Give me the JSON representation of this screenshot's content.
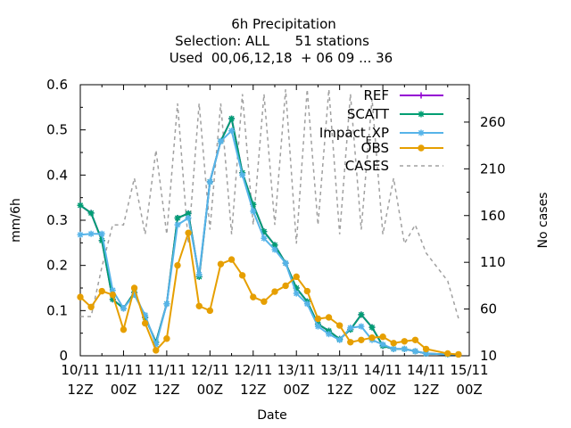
{
  "chart_data": {
    "type": "line",
    "title_lines": [
      "6h Precipitation",
      "Selection: ALL      51 stations",
      "Used  00,06,12,18  + 06 09 ... 36"
    ],
    "xlabel": "Date",
    "ylabel": "mm/6h",
    "y2label": "No cases",
    "xlim": [
      0,
      108
    ],
    "ylim": [
      0,
      0.6
    ],
    "y2lim": [
      10,
      300
    ],
    "x_ticks": [
      {
        "x": 0,
        "l1": "10/11",
        "l2": "12Z"
      },
      {
        "x": 12,
        "l1": "11/11",
        "l2": "00Z"
      },
      {
        "x": 24,
        "l1": "11/11",
        "l2": "12Z"
      },
      {
        "x": 36,
        "l1": "12/11",
        "l2": "00Z"
      },
      {
        "x": 48,
        "l1": "12/11",
        "l2": "12Z"
      },
      {
        "x": 60,
        "l1": "13/11",
        "l2": "00Z"
      },
      {
        "x": 72,
        "l1": "13/11",
        "l2": "12Z"
      },
      {
        "x": 84,
        "l1": "14/11",
        "l2": "00Z"
      },
      {
        "x": 96,
        "l1": "14/11",
        "l2": "12Z"
      },
      {
        "x": 108,
        "l1": "15/11",
        "l2": "00Z"
      }
    ],
    "y_ticks": [
      "0",
      "0.1",
      "0.2",
      "0.3",
      "0.4",
      "0.5",
      "0.6"
    ],
    "y_tick_values": [
      0,
      0.1,
      0.2,
      0.3,
      0.4,
      0.5,
      0.6
    ],
    "y2_ticks": [
      "10",
      "60",
      "110",
      "160",
      "210",
      "260"
    ],
    "y2_tick_values": [
      10,
      60,
      110,
      160,
      210,
      260
    ],
    "legend_position": "top-right",
    "series": [
      {
        "name": "REF",
        "color": "#9400d3",
        "marker": "plus",
        "dashed": false,
        "x": [
          0,
          3,
          6,
          9,
          12,
          15,
          18,
          21,
          24,
          27,
          30,
          33,
          36,
          39,
          42,
          45,
          48,
          51,
          54,
          57,
          60,
          63,
          66,
          69,
          72,
          75,
          78,
          81,
          84,
          87,
          90,
          93,
          96,
          102,
          105
        ],
        "y": [
          0.333,
          0.316,
          0.255,
          0.125,
          0.105,
          0.14,
          0.085,
          0.03,
          0.115,
          0.305,
          0.315,
          0.175,
          0.385,
          0.475,
          0.525,
          0.405,
          0.335,
          0.275,
          0.245,
          0.205,
          0.15,
          0.12,
          0.07,
          0.055,
          0.037,
          0.058,
          0.091,
          0.063,
          0.022,
          0.015,
          0.015,
          0.01,
          0.005,
          0.003,
          0.003
        ]
      },
      {
        "name": "SCATT",
        "color": "#009e73",
        "marker": "star",
        "dashed": false,
        "x": [
          0,
          3,
          6,
          9,
          12,
          15,
          18,
          21,
          24,
          27,
          30,
          33,
          36,
          39,
          42,
          45,
          48,
          51,
          54,
          57,
          60,
          63,
          66,
          69,
          72,
          75,
          78,
          81,
          84,
          87,
          90,
          93,
          96,
          102,
          105
        ],
        "y": [
          0.333,
          0.316,
          0.255,
          0.125,
          0.105,
          0.14,
          0.085,
          0.03,
          0.115,
          0.305,
          0.315,
          0.175,
          0.385,
          0.475,
          0.525,
          0.405,
          0.335,
          0.275,
          0.245,
          0.205,
          0.15,
          0.12,
          0.07,
          0.055,
          0.037,
          0.058,
          0.091,
          0.063,
          0.022,
          0.015,
          0.015,
          0.01,
          0.005,
          0.003,
          0.003
        ]
      },
      {
        "name": "Impact_EXP",
        "label_main": "Impact",
        "label_sub": "E",
        "label_after": "XP",
        "color": "#56b4e9",
        "marker": "star",
        "dashed": false,
        "x": [
          0,
          3,
          6,
          9,
          12,
          15,
          18,
          21,
          24,
          27,
          30,
          33,
          36,
          39,
          42,
          45,
          48,
          51,
          54,
          57,
          60,
          63,
          66,
          69,
          72,
          75,
          78,
          81,
          84,
          87,
          90,
          93,
          96,
          102,
          105
        ],
        "y": [
          0.268,
          0.27,
          0.27,
          0.145,
          0.105,
          0.135,
          0.09,
          0.025,
          0.115,
          0.29,
          0.305,
          0.18,
          0.385,
          0.475,
          0.498,
          0.4,
          0.32,
          0.26,
          0.235,
          0.205,
          0.138,
          0.115,
          0.065,
          0.048,
          0.035,
          0.062,
          0.065,
          0.035,
          0.025,
          0.015,
          0.015,
          0.01,
          0.005,
          0.003,
          0.003
        ]
      },
      {
        "name": "OBS",
        "color": "#e69f00",
        "marker": "circle",
        "dashed": false,
        "x": [
          0,
          3,
          6,
          9,
          12,
          15,
          18,
          21,
          24,
          27,
          30,
          33,
          36,
          39,
          42,
          45,
          48,
          51,
          54,
          57,
          60,
          63,
          66,
          69,
          72,
          75,
          78,
          81,
          84,
          87,
          90,
          93,
          96,
          102,
          105
        ],
        "y": [
          0.13,
          0.108,
          0.143,
          0.135,
          0.058,
          0.15,
          0.072,
          0.012,
          0.038,
          0.2,
          0.272,
          0.11,
          0.1,
          0.203,
          0.213,
          0.178,
          0.13,
          0.12,
          0.142,
          0.155,
          0.175,
          0.143,
          0.082,
          0.085,
          0.067,
          0.03,
          0.035,
          0.04,
          0.042,
          0.028,
          0.032,
          0.035,
          0.015,
          0.005,
          0.003
        ]
      },
      {
        "name": "CASES",
        "color": "#a0a0a0",
        "marker": "none",
        "dashed": true,
        "axis": "y2",
        "x": [
          0,
          3,
          6,
          9,
          12,
          15,
          18,
          21,
          24,
          27,
          30,
          33,
          36,
          39,
          42,
          45,
          48,
          51,
          54,
          57,
          60,
          63,
          66,
          69,
          72,
          75,
          78,
          81,
          84,
          87,
          90,
          93,
          96,
          102,
          105
        ],
        "y": [
          52,
          52,
          105,
          150,
          150,
          200,
          140,
          230,
          140,
          280,
          130,
          280,
          145,
          280,
          140,
          290,
          150,
          290,
          150,
          295,
          130,
          295,
          150,
          295,
          140,
          290,
          145,
          285,
          140,
          200,
          130,
          150,
          120,
          90,
          50
        ]
      }
    ]
  }
}
